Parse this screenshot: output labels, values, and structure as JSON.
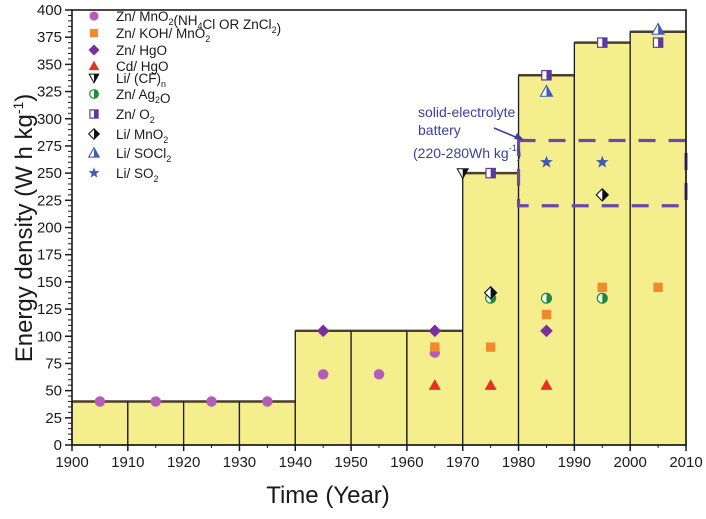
{
  "chart_data": {
    "type": "scatter",
    "title": "",
    "xlabel": "Time (Year)",
    "ylabel": "Energy density (W h kg-1)",
    "ylabel_parts": {
      "main": "Energy density (W h kg",
      "sup": "-1",
      "close": ")"
    },
    "xlim": [
      1900,
      2010
    ],
    "ylim": [
      0,
      400
    ],
    "x_ticks": [
      1900,
      1910,
      1920,
      1930,
      1940,
      1950,
      1960,
      1970,
      1980,
      1990,
      2000,
      2010
    ],
    "y_ticks": [
      0,
      25,
      50,
      75,
      100,
      125,
      150,
      175,
      200,
      225,
      250,
      275,
      300,
      325,
      350,
      375,
      400
    ],
    "grid": false,
    "legend_position": "top-left",
    "background_bars": {
      "description": "Step envelope of maximum energy density per decade",
      "color": "#f5ee8c",
      "bins": [
        {
          "start": 1900,
          "end": 1910,
          "value": 40
        },
        {
          "start": 1910,
          "end": 1920,
          "value": 40
        },
        {
          "start": 1920,
          "end": 1930,
          "value": 40
        },
        {
          "start": 1930,
          "end": 1940,
          "value": 40
        },
        {
          "start": 1940,
          "end": 1950,
          "value": 105
        },
        {
          "start": 1950,
          "end": 1960,
          "value": 105
        },
        {
          "start": 1960,
          "end": 1970,
          "value": 105
        },
        {
          "start": 1970,
          "end": 1980,
          "value": 250
        },
        {
          "start": 1980,
          "end": 1990,
          "value": 340
        },
        {
          "start": 1990,
          "end": 2000,
          "value": 370
        },
        {
          "start": 2000,
          "end": 2010,
          "value": 380
        }
      ]
    },
    "series": [
      {
        "name": "Zn/ MnO2(NH4Cl OR ZnCl2)",
        "label_parts": [
          [
            "Zn/ MnO",
            ""
          ],
          [
            "2",
            "sub"
          ],
          [
            "(NH",
            ""
          ],
          [
            "4",
            "sub"
          ],
          [
            "Cl OR ZnCl",
            ""
          ],
          [
            "2",
            "sub"
          ],
          [
            ")",
            ""
          ]
        ],
        "marker": "circle",
        "color": "#b45cb8",
        "points": [
          [
            1905,
            40
          ],
          [
            1915,
            40
          ],
          [
            1925,
            40
          ],
          [
            1935,
            40
          ],
          [
            1945,
            65
          ],
          [
            1955,
            65
          ],
          [
            1965,
            85
          ]
        ]
      },
      {
        "name": "Zn/ KOH/ MnO2",
        "label_parts": [
          [
            "Zn/ KOH/ MnO",
            ""
          ],
          [
            "2",
            "sub"
          ]
        ],
        "marker": "square",
        "color": "#f08a2c",
        "points": [
          [
            1965,
            90
          ],
          [
            1975,
            90
          ],
          [
            1985,
            120
          ],
          [
            1995,
            145
          ],
          [
            2005,
            145
          ]
        ]
      },
      {
        "name": "Zn/ HgO",
        "label_parts": [
          [
            "Zn/ HgO",
            ""
          ]
        ],
        "marker": "diamond",
        "color": "#7a2f9c",
        "points": [
          [
            1945,
            105
          ],
          [
            1965,
            105
          ],
          [
            1985,
            105
          ]
        ]
      },
      {
        "name": "Cd/ HgO",
        "label_parts": [
          [
            "Cd/ HgO",
            ""
          ]
        ],
        "marker": "triangle",
        "color": "#e8321e",
        "points": [
          [
            1965,
            55
          ],
          [
            1975,
            55
          ],
          [
            1985,
            55
          ]
        ]
      },
      {
        "name": "Li/ (CF)n",
        "label_parts": [
          [
            "Li/ (CF)",
            ""
          ],
          [
            "n",
            "sub"
          ]
        ],
        "marker": "half-triangle-down",
        "color": "#111111",
        "points": [
          [
            1970,
            250
          ]
        ]
      },
      {
        "name": "Zn/ Ag2O",
        "label_parts": [
          [
            "Zn/ Ag",
            ""
          ],
          [
            "2",
            "sub"
          ],
          [
            "O",
            ""
          ]
        ],
        "marker": "half-circle",
        "color": "#1f8a3c",
        "points": [
          [
            1975,
            135
          ],
          [
            1985,
            135
          ],
          [
            1995,
            135
          ]
        ]
      },
      {
        "name": "Zn/ O2",
        "label_parts": [
          [
            "Zn/ O",
            ""
          ],
          [
            "2",
            "sub"
          ]
        ],
        "marker": "half-square",
        "color": "#5a3aa0",
        "points": [
          [
            1975,
            250
          ],
          [
            1985,
            340
          ],
          [
            1995,
            370
          ],
          [
            2005,
            370
          ]
        ]
      },
      {
        "name": "Li/ MnO2",
        "label_parts": [
          [
            "Li/ MnO",
            ""
          ],
          [
            "2",
            "sub"
          ]
        ],
        "marker": "half-diamond",
        "color": "#111111",
        "points": [
          [
            1975,
            140
          ],
          [
            1995,
            230
          ]
        ]
      },
      {
        "name": "Li/ SOCl2",
        "label_parts": [
          [
            "Li/ SOCl",
            ""
          ],
          [
            "2",
            "sub"
          ]
        ],
        "marker": "half-triangle",
        "color": "#3f5cb8",
        "points": [
          [
            1985,
            325
          ],
          [
            2005,
            382
          ]
        ]
      },
      {
        "name": "Li/ SO2",
        "label_parts": [
          [
            "Li/ SO",
            ""
          ],
          [
            "2",
            "sub"
          ]
        ],
        "marker": "star",
        "color": "#3f5cb8",
        "points": [
          [
            1985,
            260
          ],
          [
            1995,
            260
          ]
        ]
      }
    ],
    "annotations": [
      {
        "type": "dashed-box",
        "x_range": [
          1980,
          2010
        ],
        "y_range": [
          220,
          280
        ],
        "color": "#6a4aa8",
        "text_lines": [
          "solid-electrolyte",
          "battery"
        ],
        "text_range": "(220-280Wh kg",
        "text_range_sup": "-1",
        "text_range_close": ")",
        "text_color": "#3b3f9e"
      }
    ]
  }
}
